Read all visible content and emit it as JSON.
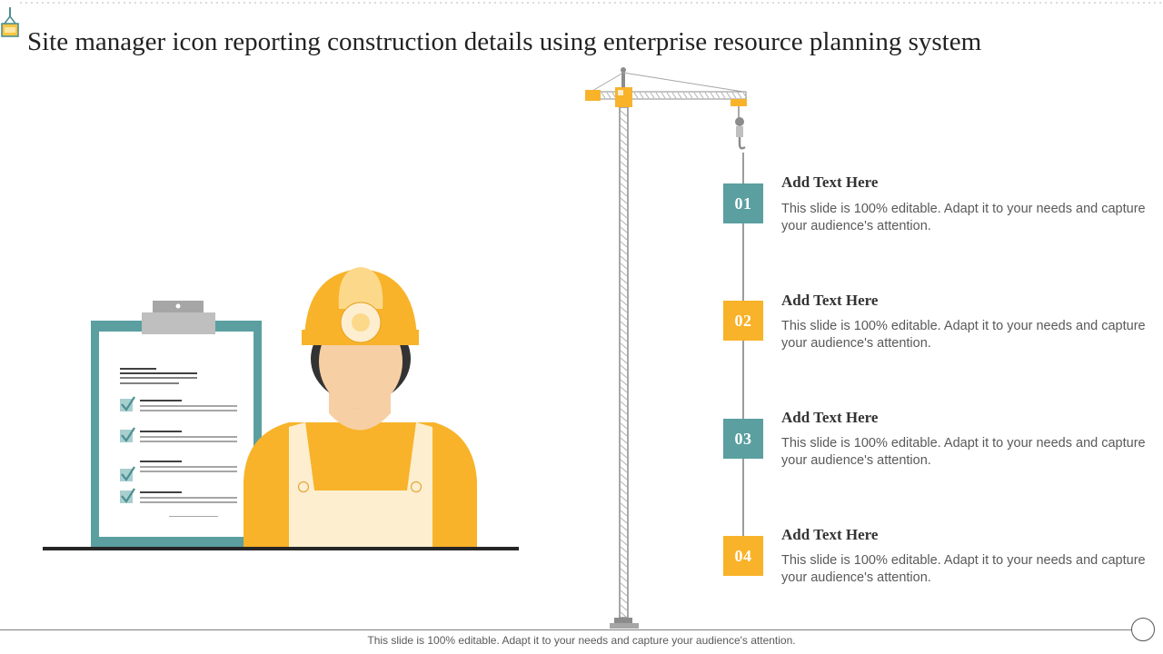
{
  "title": "Site manager icon reporting construction details using enterprise resource planning system",
  "colors": {
    "teal": "#5b9fa0",
    "yellow": "#f8b32a",
    "skin": "#f7cfa4",
    "apron": "#fdeed0",
    "gray": "#a6a6a6",
    "dark": "#333333"
  },
  "icons": {
    "logo": "hanging-crate-icon",
    "worker": "construction-worker-icon",
    "clipboard": "checklist-clipboard-icon",
    "crane": "tower-crane-icon"
  },
  "steps": [
    {
      "number": "01",
      "heading": "Add Text Here",
      "text": "This slide is 100% editable. Adapt it to your needs and capture your audience's attention.",
      "color": "#5b9fa0"
    },
    {
      "number": "02",
      "heading": "Add Text Here",
      "text": "This slide is 100% editable. Adapt it to your needs and capture your audience's attention.",
      "color": "#f8b32a"
    },
    {
      "number": "03",
      "heading": "Add Text Here",
      "text": "This slide is 100% editable. Adapt it to your needs and capture your audience's attention.",
      "color": "#5b9fa0"
    },
    {
      "number": "04",
      "heading": "Add Text Here",
      "text": "This slide is 100% editable. Adapt it to your needs and capture your audience's attention.",
      "color": "#f8b32a"
    }
  ],
  "footer": {
    "text": "This slide is 100% editable. Adapt it to your needs and capture your audience's attention."
  }
}
